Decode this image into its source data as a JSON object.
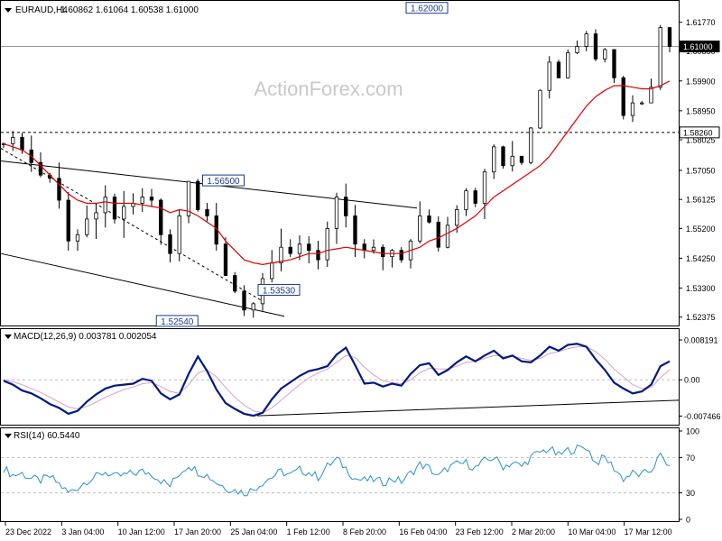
{
  "header": {
    "symbol": "EURAUD,H4",
    "ohlc": "1.60862 1.61064 1.60538 1.61000"
  },
  "watermark": "ActionForex.com",
  "colors": {
    "candle": "#000000",
    "ma": "#e00000",
    "macd": "#001a80",
    "signal": "#d9a0c8",
    "rsi": "#2b8fd6",
    "trendline": "#000000",
    "grid": "#bfbfbf"
  },
  "chart_data": [
    {
      "type": "candlestick",
      "title": "EURAUD,H4",
      "ylim": [
        1.5225,
        1.6225
      ],
      "yticks": [
        "1.61770",
        "1.60850",
        "1.59900",
        "1.58950",
        "1.58025",
        "1.57050",
        "1.56125",
        "1.55200",
        "1.54250",
        "1.53300",
        "1.52375"
      ],
      "price_labels": [
        {
          "text": "1.61000",
          "value": 1.61,
          "style": "current"
        },
        {
          "text": "1.58260",
          "value": 1.5826,
          "style": "level"
        }
      ],
      "annotations": [
        {
          "text": "1.62000",
          "date_index": 48
        },
        {
          "text": "1.56500",
          "date_index": 26
        },
        {
          "text": "1.53530",
          "date_index": 32
        },
        {
          "text": "1.52540",
          "date_index": 21
        }
      ],
      "dates": [
        "23 Dec 2022",
        "3 Jan 04:00",
        "10 Jan 12:00",
        "17 Jan 20:00",
        "25 Jan 04:00",
        "1 Feb 12:00",
        "8 Feb 20:00",
        "16 Feb 04:00",
        "23 Feb 12:00",
        "2 Mar 20:00",
        "10 Mar 04:00",
        "17 Mar 12:00"
      ],
      "series": [
        {
          "name": "EURAUD",
          "close": [
            1.579,
            1.581,
            1.577,
            1.573,
            1.569,
            1.568,
            1.561,
            1.548,
            1.55,
            1.555,
            1.557,
            1.562,
            1.555,
            1.559,
            1.56,
            1.562,
            1.561,
            1.55,
            1.544,
            1.556,
            1.567,
            1.558,
            1.556,
            1.547,
            1.537,
            1.532,
            1.526,
            1.528,
            1.536,
            1.541,
            1.546,
            1.544,
            1.547,
            1.545,
            1.542,
            1.552,
            1.562,
            1.556,
            1.547,
            1.545,
            1.546,
            1.543,
            1.545,
            1.542,
            1.548,
            1.556,
            1.554,
            1.546,
            1.553,
            1.558,
            1.564,
            1.56,
            1.57,
            1.578,
            1.572,
            1.575,
            1.573,
            1.584,
            1.596,
            1.605,
            1.6,
            1.608,
            1.61,
            1.614,
            1.606,
            1.609,
            1.6,
            1.588,
            1.592,
            1.592,
            1.597,
            1.616,
            1.61
          ]
        },
        {
          "name": "MA",
          "close": [
            1.579,
            1.578,
            1.577,
            1.575,
            1.572,
            1.569,
            1.566,
            1.563,
            1.561,
            1.56,
            1.56,
            1.5605,
            1.56,
            1.56,
            1.56,
            1.5595,
            1.559,
            1.5585,
            1.557,
            1.558,
            1.5575,
            1.556,
            1.554,
            1.552,
            1.548,
            1.545,
            1.542,
            1.541,
            1.5405,
            1.541,
            1.5415,
            1.542,
            1.543,
            1.544,
            1.544,
            1.545,
            1.5455,
            1.546,
            1.5455,
            1.545,
            1.5445,
            1.544,
            1.544,
            1.544,
            1.545,
            1.546,
            1.548,
            1.549,
            1.5505,
            1.552,
            1.554,
            1.556,
            1.559,
            1.562,
            1.564,
            1.566,
            1.568,
            1.57,
            1.572,
            1.575,
            1.579,
            1.583,
            1.587,
            1.591,
            1.594,
            1.596,
            1.5975,
            1.5975,
            1.597,
            1.5965,
            1.5965,
            1.5975,
            1.599
          ]
        }
      ]
    },
    {
      "type": "line",
      "title": "MACD(12,26,9) 0.003781 0.002054",
      "ylim": [
        -0.0085,
        0.0095
      ],
      "yticks": [
        "0.008191",
        "0.00",
        "-0.007466"
      ],
      "series": [
        {
          "name": "MACD",
          "values": [
            -0.0002,
            -0.001,
            -0.0022,
            -0.0028,
            -0.0038,
            -0.005,
            -0.0058,
            -0.007,
            -0.0064,
            -0.0045,
            -0.003,
            -0.0018,
            -0.0012,
            -0.001,
            -0.0008,
            0.0002,
            -0.0002,
            -0.0028,
            -0.004,
            -0.003,
            0.0012,
            0.0048,
            0.0018,
            -0.002,
            -0.0048,
            -0.006,
            -0.007,
            -0.0074,
            -0.0068,
            -0.004,
            -0.0018,
            -0.0005,
            0.0008,
            0.0018,
            0.0022,
            0.0028,
            0.0052,
            0.0066,
            0.003,
            -0.0008,
            -0.0006,
            -0.0014,
            -0.0008,
            -0.0012,
            0.0012,
            0.003,
            0.0034,
            0.001,
            0.002,
            0.0036,
            0.0048,
            0.0038,
            0.005,
            0.006,
            0.0044,
            0.005,
            0.0038,
            0.0036,
            0.005,
            0.0068,
            0.006,
            0.0072,
            0.0074,
            0.0068,
            0.0042,
            0.002,
            -0.0006,
            -0.0018,
            -0.0028,
            -0.0024,
            -0.001,
            0.0028,
            0.0038
          ]
        },
        {
          "name": "Signal",
          "values": [
            0.0,
            -0.0004,
            -0.001,
            -0.0018,
            -0.0026,
            -0.0036,
            -0.0046,
            -0.0056,
            -0.006,
            -0.0055,
            -0.0046,
            -0.0036,
            -0.0028,
            -0.002,
            -0.0015,
            -0.0008,
            -0.0006,
            -0.0014,
            -0.0024,
            -0.0028,
            -0.001,
            0.0014,
            0.002,
            0.0006,
            -0.0016,
            -0.0036,
            -0.0052,
            -0.0064,
            -0.0068,
            -0.0058,
            -0.0042,
            -0.0026,
            -0.001,
            0.0004,
            0.0014,
            0.0022,
            0.0036,
            0.005,
            0.0046,
            0.0026,
            0.001,
            -0.0002,
            -0.0006,
            -0.0008,
            0.0,
            0.0014,
            0.0024,
            0.0022,
            0.0022,
            0.0028,
            0.0036,
            0.0038,
            0.0044,
            0.005,
            0.0048,
            0.0048,
            0.0044,
            0.004,
            0.0044,
            0.0054,
            0.0058,
            0.0064,
            0.0068,
            0.0068,
            0.0058,
            0.0042,
            0.0022,
            0.0006,
            -0.001,
            -0.0018,
            -0.0016,
            0.0004,
            0.0021
          ]
        }
      ]
    },
    {
      "type": "line",
      "title": "RSI(14) 60.5440",
      "ylim": [
        0,
        100
      ],
      "yticks": [
        "100",
        "70",
        "30",
        "0"
      ],
      "series": [
        {
          "name": "RSI",
          "values": [
            58,
            50,
            52,
            46,
            44,
            48,
            40,
            30,
            36,
            44,
            48,
            54,
            48,
            50,
            52,
            54,
            52,
            44,
            38,
            52,
            62,
            54,
            50,
            42,
            36,
            33,
            30,
            34,
            42,
            48,
            54,
            50,
            56,
            53,
            48,
            60,
            68,
            58,
            46,
            44,
            45,
            42,
            46,
            43,
            52,
            62,
            58,
            48,
            58,
            62,
            64,
            58,
            66,
            70,
            60,
            64,
            60,
            70,
            76,
            80,
            72,
            78,
            80,
            82,
            64,
            70,
            58,
            46,
            52,
            50,
            56,
            72,
            60.5
          ]
        }
      ]
    }
  ]
}
